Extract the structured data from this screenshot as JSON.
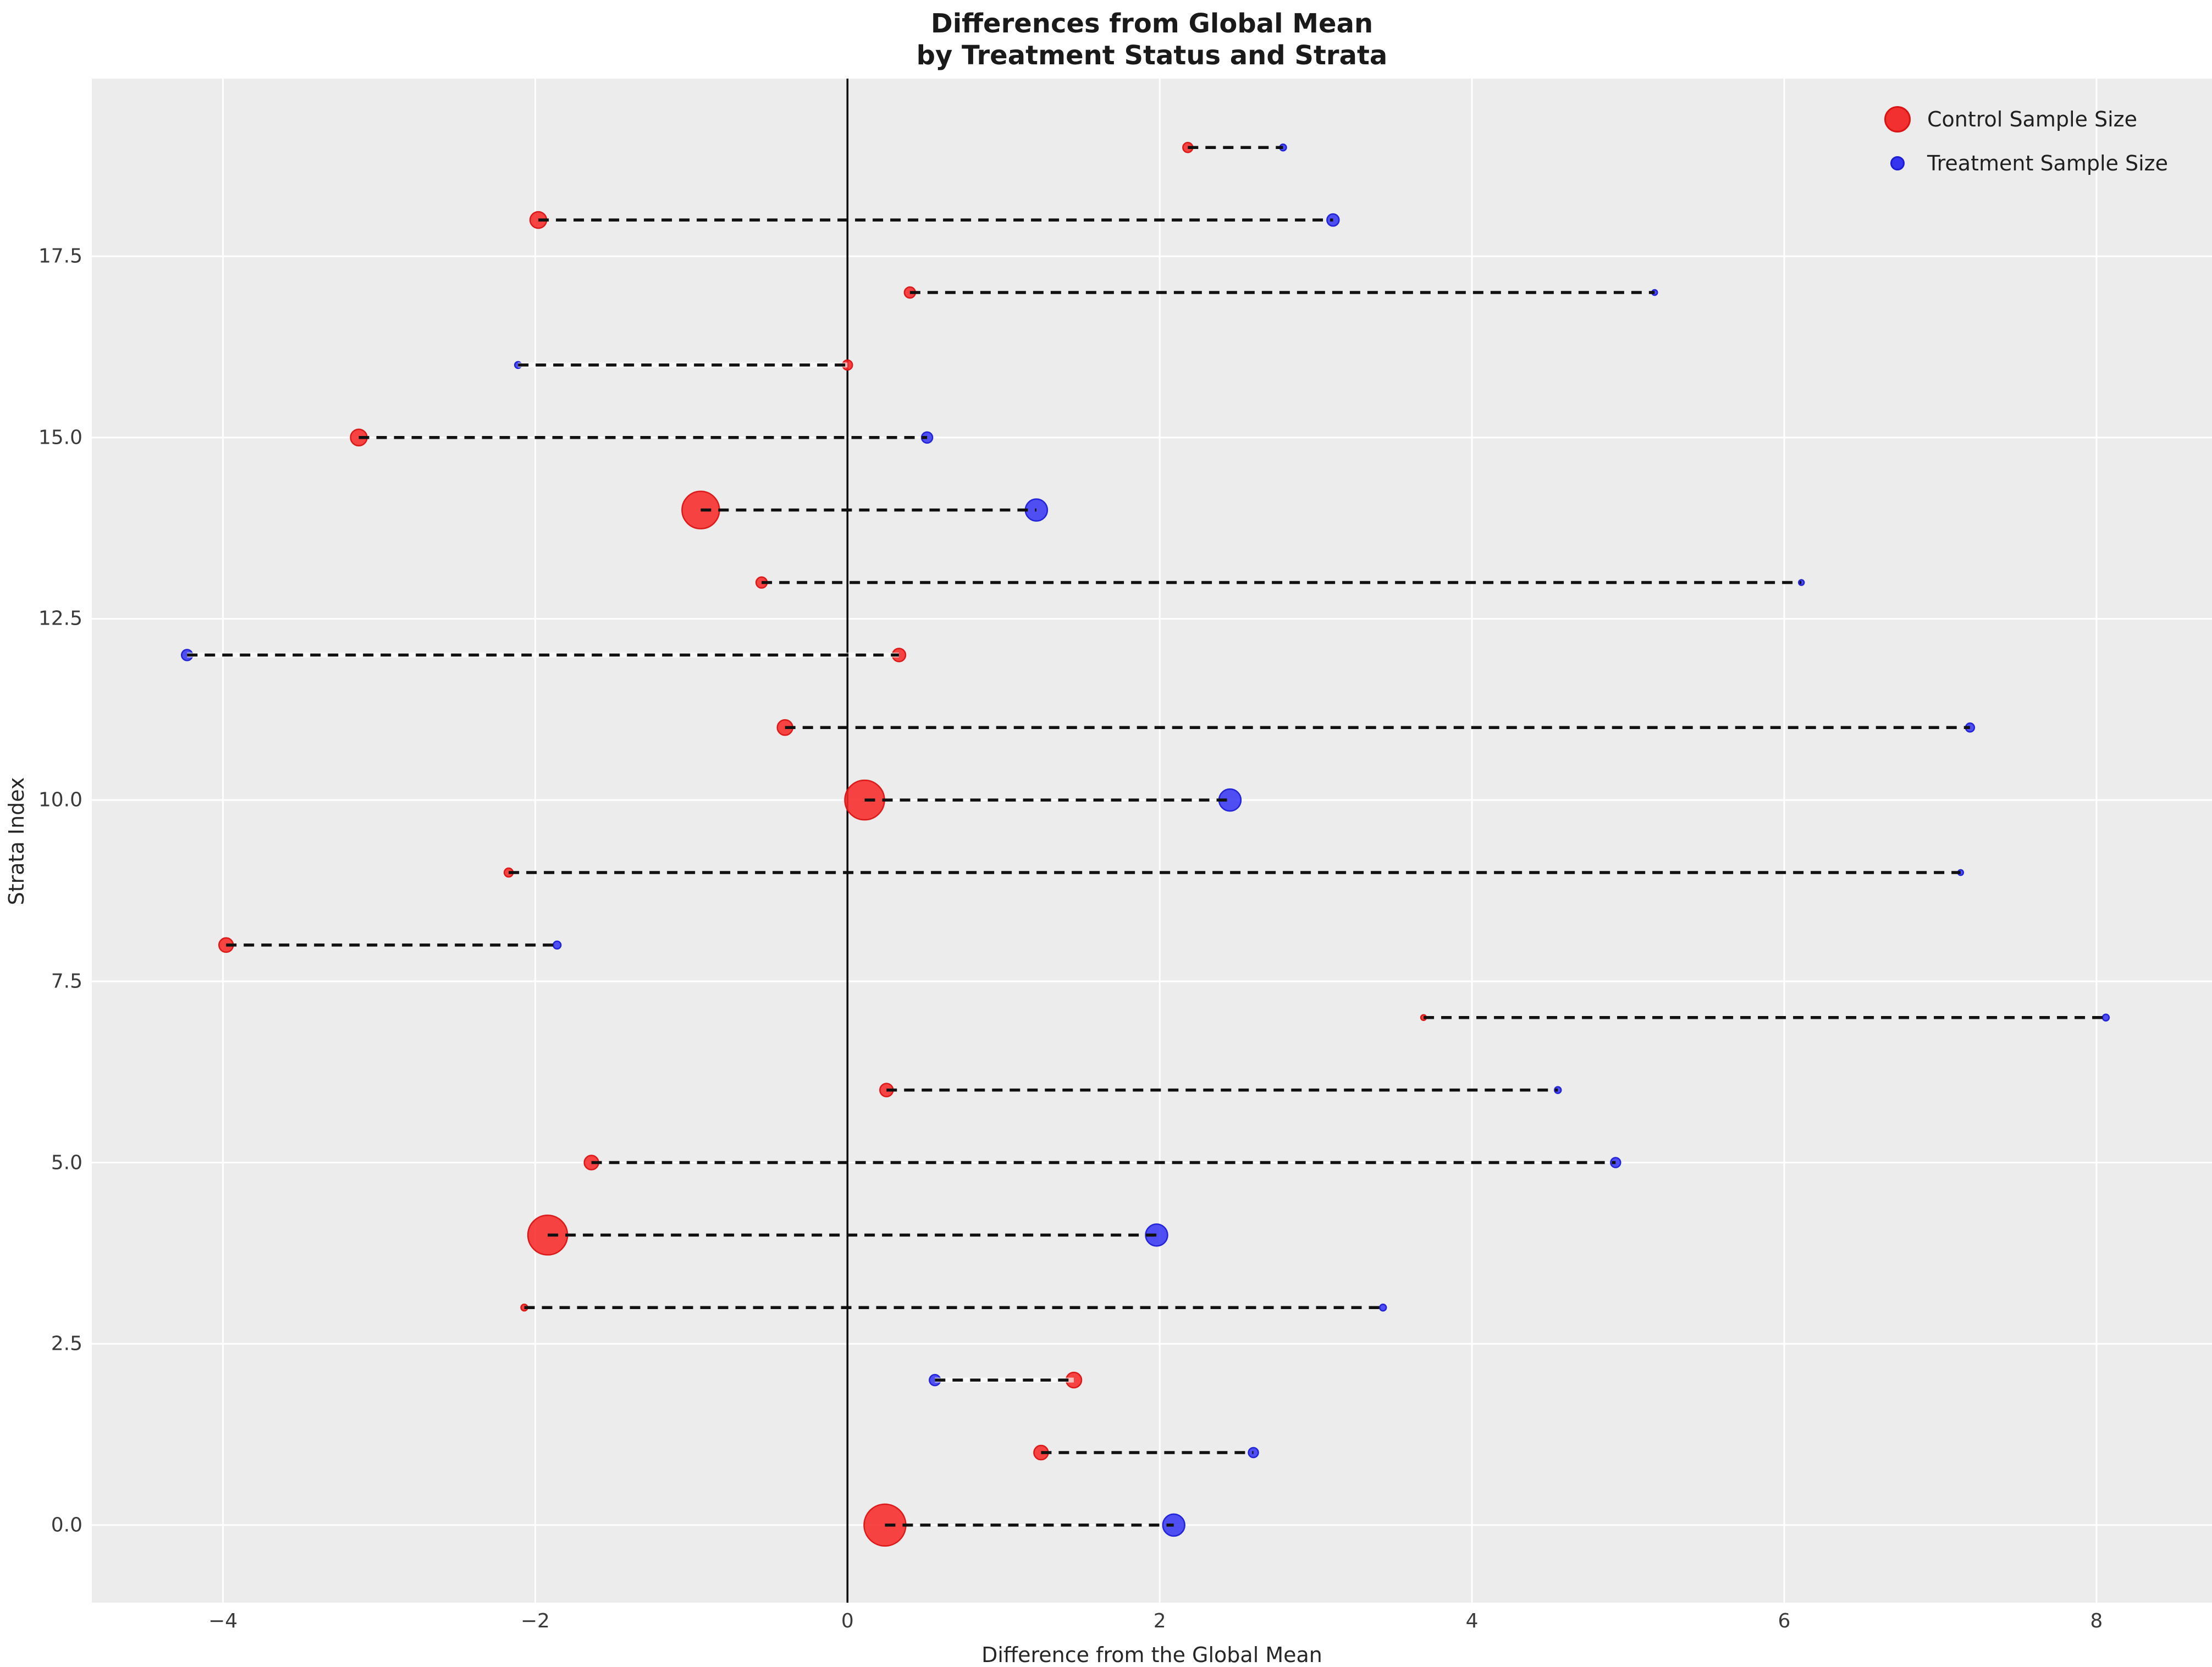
{
  "title": {
    "line1": "Differences from Global Mean",
    "line2": "by Treatment Status and Strata"
  },
  "axes": {
    "xlabel": "Difference from the Global Mean",
    "ylabel": "Strata Index"
  },
  "legend": {
    "items": [
      {
        "label": "Control Sample Size",
        "color": "#f23030",
        "edge": "#d91414",
        "marker_radius": 24
      },
      {
        "label": "Treatment Sample Size",
        "color": "#3535f0",
        "edge": "#1d1dd6",
        "marker_radius": 13
      }
    ]
  },
  "colors": {
    "plot_background": "#ececec",
    "figure_background": "#ffffff",
    "gridline": "#ffffff",
    "zero_line": "#000000",
    "connector": "#111111",
    "control_fill": "rgba(248,42,42,0.88)",
    "control_edge": "rgba(217,20,20,0.95)",
    "treatment_fill": "rgba(56,56,243,0.88)",
    "treatment_edge": "rgba(29,29,214,0.95)",
    "tick_label": "#3a3a3a"
  },
  "chart_data": {
    "type": "scatter",
    "subtype": "dumbbell",
    "title": "Differences from Global Mean by Treatment Status and Strata",
    "xlabel": "Difference from the Global Mean",
    "ylabel": "Strata Index",
    "xlim": [
      -4.84,
      8.74
    ],
    "ylim": [
      -1.07,
      19.95
    ],
    "x_ticks": [
      -4,
      -2,
      0,
      2,
      4,
      6,
      8
    ],
    "x_tick_labels": [
      "−4",
      "−2",
      "0",
      "2",
      "4",
      "6",
      "8"
    ],
    "y_ticks": [
      0,
      2.5,
      5,
      7.5,
      10,
      12.5,
      15,
      17.5
    ],
    "y_tick_labels": [
      "0.0",
      "2.5",
      "5.0",
      "7.5",
      "10.0",
      "12.5",
      "15.0",
      "17.5"
    ],
    "grid": true,
    "zero_line_x": 0,
    "legend_position": "upper right",
    "series": [
      {
        "name": "Control",
        "color": "red",
        "size_encodes": "Control Sample Size"
      },
      {
        "name": "Treatment",
        "color": "blue",
        "size_encodes": "Treatment Sample Size"
      }
    ],
    "rows": [
      {
        "strata": 0,
        "control_x": 0.24,
        "treatment_x": 2.09,
        "control_r": 38,
        "treatment_r": 20
      },
      {
        "strata": 1,
        "control_x": 1.24,
        "treatment_x": 2.6,
        "control_r": 13,
        "treatment_r": 9
      },
      {
        "strata": 2,
        "control_x": 1.45,
        "treatment_x": 0.56,
        "control_r": 14,
        "treatment_r": 10
      },
      {
        "strata": 3,
        "control_x": -2.07,
        "treatment_x": 3.43,
        "control_r": 6,
        "treatment_r": 6
      },
      {
        "strata": 4,
        "control_x": -1.92,
        "treatment_x": 1.98,
        "control_r": 36,
        "treatment_r": 20
      },
      {
        "strata": 5,
        "control_x": -1.64,
        "treatment_x": 4.92,
        "control_r": 13,
        "treatment_r": 9
      },
      {
        "strata": 6,
        "control_x": 0.25,
        "treatment_x": 4.55,
        "control_r": 12,
        "treatment_r": 6
      },
      {
        "strata": 7,
        "control_x": 3.69,
        "treatment_x": 8.06,
        "control_r": 5,
        "treatment_r": 6
      },
      {
        "strata": 8,
        "control_x": -3.98,
        "treatment_x": -1.86,
        "control_r": 13,
        "treatment_r": 7
      },
      {
        "strata": 9,
        "control_x": -2.17,
        "treatment_x": 7.13,
        "control_r": 8,
        "treatment_r": 5
      },
      {
        "strata": 10,
        "control_x": 0.11,
        "treatment_x": 2.45,
        "control_r": 36,
        "treatment_r": 20
      },
      {
        "strata": 11,
        "control_x": -0.4,
        "treatment_x": 7.19,
        "control_r": 14,
        "treatment_r": 8
      },
      {
        "strata": 12,
        "control_x": 0.33,
        "treatment_x": -4.23,
        "control_r": 12,
        "treatment_r": 10
      },
      {
        "strata": 13,
        "control_x": -0.55,
        "treatment_x": 6.11,
        "control_r": 10,
        "treatment_r": 5
      },
      {
        "strata": 14,
        "control_x": -0.94,
        "treatment_x": 1.21,
        "control_r": 34,
        "treatment_r": 20
      },
      {
        "strata": 15,
        "control_x": -3.13,
        "treatment_x": 0.51,
        "control_r": 15,
        "treatment_r": 10
      },
      {
        "strata": 16,
        "control_x": 0.0,
        "treatment_x": -2.11,
        "control_r": 9,
        "treatment_r": 6
      },
      {
        "strata": 17,
        "control_x": 0.4,
        "treatment_x": 5.17,
        "control_r": 10,
        "treatment_r": 5
      },
      {
        "strata": 18,
        "control_x": -1.98,
        "treatment_x": 3.11,
        "control_r": 15,
        "treatment_r": 11
      },
      {
        "strata": 19,
        "control_x": 2.18,
        "treatment_x": 2.79,
        "control_r": 9,
        "treatment_r": 6
      }
    ]
  }
}
